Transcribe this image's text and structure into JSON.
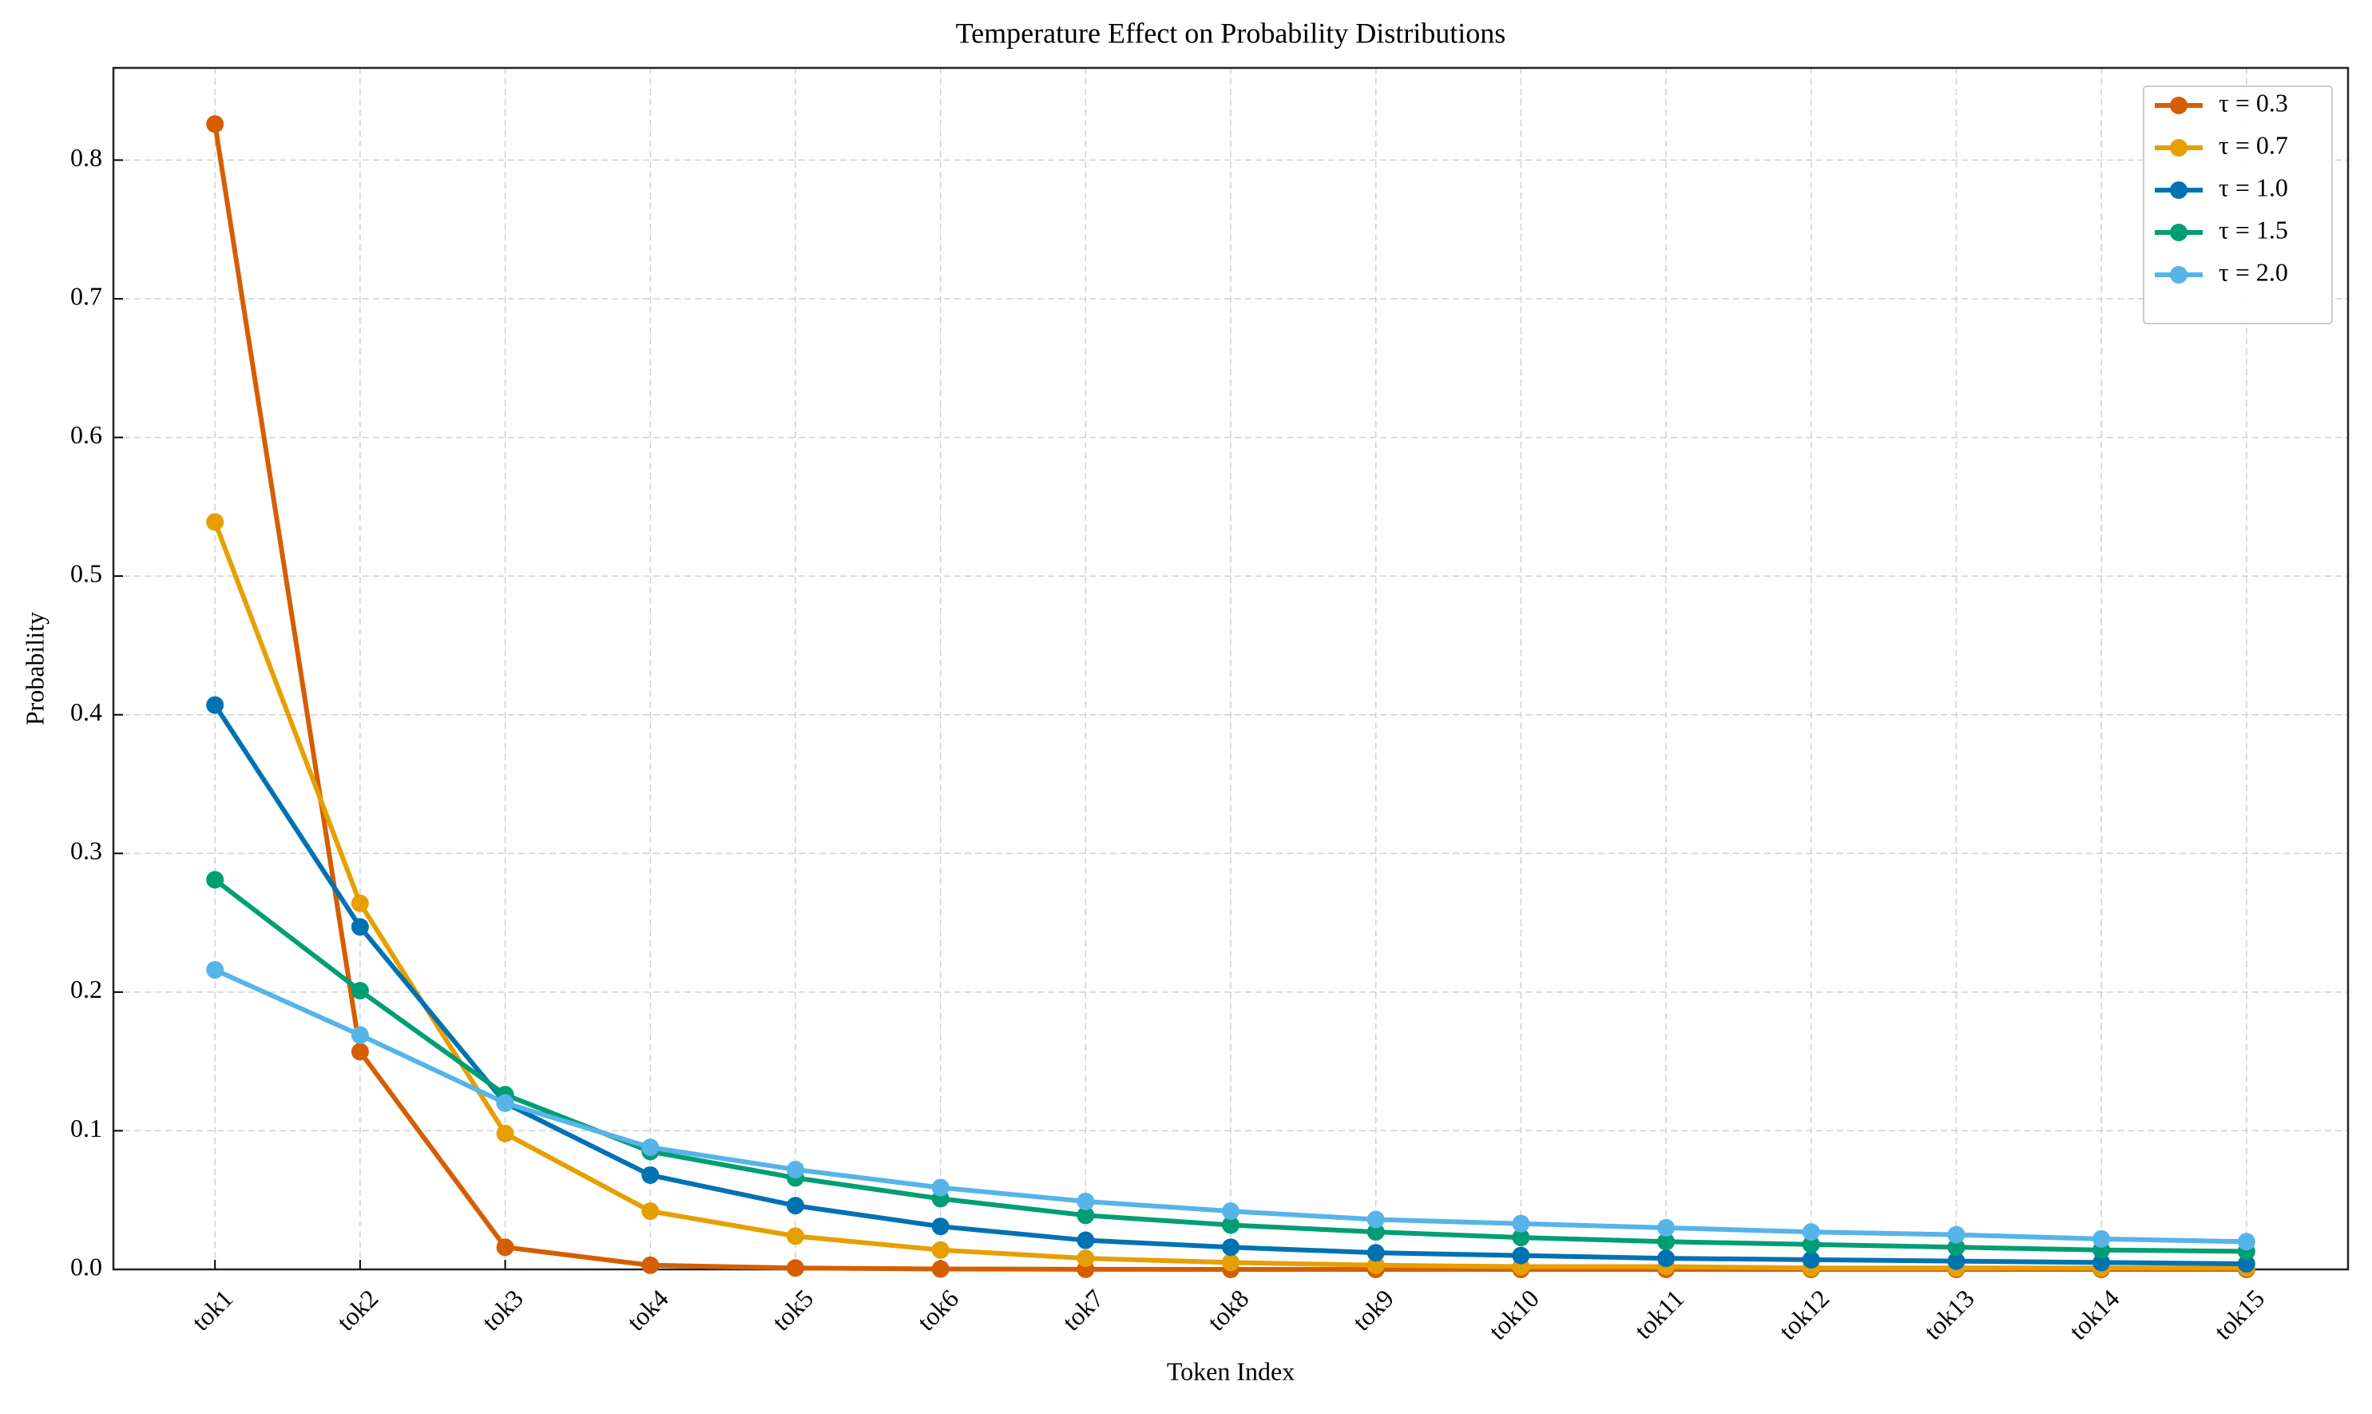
{
  "chart_data": {
    "type": "line",
    "title": "Temperature Effect on Probability Distributions",
    "x_label": "Token Index",
    "y_label": "Probability",
    "categories": [
      "tok1",
      "tok2",
      "tok3",
      "tok4",
      "tok5",
      "tok6",
      "tok7",
      "tok8",
      "tok9",
      "tok10",
      "tok11",
      "tok12",
      "tok13",
      "tok14",
      "tok15"
    ],
    "series": [
      {
        "name": "τ = 0.3",
        "color": "#d55e00",
        "values": [
          0.826,
          0.157,
          0.016,
          0.003,
          0.001,
          0.0003,
          0.0001,
          0.0,
          0.0,
          0.0,
          0.0,
          0.0,
          0.0,
          0.0,
          0.0
        ]
      },
      {
        "name": "τ = 0.7",
        "color": "#e69f00",
        "values": [
          0.539,
          0.264,
          0.098,
          0.042,
          0.024,
          0.014,
          0.008,
          0.005,
          0.003,
          0.002,
          0.002,
          0.001,
          0.001,
          0.001,
          0.001
        ]
      },
      {
        "name": "τ = 1.0",
        "color": "#0072b2",
        "values": [
          0.407,
          0.247,
          0.12,
          0.068,
          0.046,
          0.031,
          0.021,
          0.016,
          0.012,
          0.01,
          0.008,
          0.007,
          0.006,
          0.005,
          0.004
        ]
      },
      {
        "name": "τ = 1.5",
        "color": "#009e73",
        "values": [
          0.281,
          0.201,
          0.126,
          0.085,
          0.066,
          0.051,
          0.039,
          0.032,
          0.027,
          0.023,
          0.02,
          0.018,
          0.016,
          0.014,
          0.013
        ]
      },
      {
        "name": "τ = 2.0",
        "color": "#56b4e9",
        "values": [
          0.216,
          0.169,
          0.12,
          0.088,
          0.072,
          0.059,
          0.049,
          0.042,
          0.036,
          0.033,
          0.03,
          0.027,
          0.025,
          0.022,
          0.02
        ]
      }
    ],
    "ylim": [
      0,
      0.8665
    ],
    "yticks": [
      {
        "value": 0,
        "label": "0.0"
      },
      0.1,
      0.2,
      0.3,
      0.4,
      0.5,
      0.6,
      0.7,
      0.8
    ],
    "grid": true,
    "legend": "upper right"
  }
}
